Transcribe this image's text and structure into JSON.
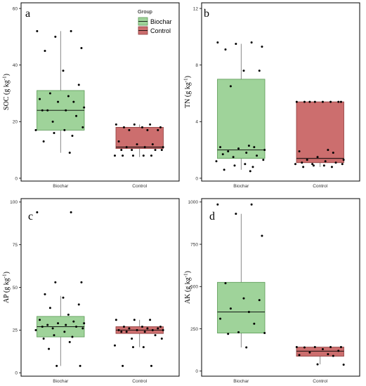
{
  "legend": {
    "title": "Group",
    "items": [
      {
        "label": "Biochar",
        "fill": "#9fd39a",
        "stroke": "#5a9a55"
      },
      {
        "label": "Control",
        "fill": "#cc6e6e",
        "stroke": "#8e3e3e"
      }
    ]
  },
  "chart_data": [
    {
      "type": "box",
      "panel": "a",
      "ylabel_main": "SOC",
      "ylabel_unit_base": "(g kg",
      "ylabel_unit_sup": "-1",
      "ylabel_unit_close": ")",
      "ylim": [
        -1,
        62
      ],
      "yticks": [
        0,
        20,
        40,
        60
      ],
      "categories": [
        "Biochar",
        "Control"
      ],
      "boxes": [
        {
          "q1": 17,
          "median": 24,
          "q3": 31,
          "whisker_low": 9,
          "whisker_high": 52
        },
        {
          "q1": 10.5,
          "median": 11,
          "q3": 18,
          "whisker_low": 7.5,
          "whisker_high": 19
        }
      ],
      "points": [
        [
          52,
          52,
          50,
          46,
          45,
          38,
          33,
          30,
          29,
          28,
          27,
          27,
          25,
          24,
          24,
          24,
          22,
          20,
          18,
          17,
          17,
          16,
          15,
          13,
          9
        ],
        [
          19,
          19,
          19,
          18,
          18,
          18,
          17,
          17,
          17,
          13,
          12,
          12,
          11,
          11,
          11,
          10,
          10,
          10,
          10,
          8,
          8,
          8,
          8,
          8
        ]
      ]
    },
    {
      "type": "box",
      "panel": "b",
      "ylabel_main": "TN",
      "ylabel_unit_base": "(g kg",
      "ylabel_unit_sup": "-1",
      "ylabel_unit_close": ")",
      "ylim": [
        -0.2,
        12.4
      ],
      "yticks": [
        0,
        4,
        8,
        12
      ],
      "categories": [
        "Biochar",
        "Control"
      ],
      "boxes": [
        {
          "q1": 1.4,
          "median": 2.0,
          "q3": 7.0,
          "whisker_low": 0.6,
          "whisker_high": 9.5
        },
        {
          "q1": 1.1,
          "median": 1.4,
          "q3": 5.4,
          "whisker_low": 0.8,
          "whisker_high": 5.4
        }
      ],
      "points": [
        [
          9.6,
          9.6,
          9.5,
          9.3,
          9.1,
          7.6,
          7.6,
          6.5,
          2.3,
          2.2,
          2.2,
          2.1,
          2.0,
          1.9,
          1.8,
          1.7,
          1.6,
          1.5,
          1.3,
          1.2,
          1.0,
          0.9,
          0.8,
          0.6,
          0.5
        ],
        [
          5.4,
          5.4,
          5.4,
          5.4,
          5.4,
          5.4,
          5.4,
          5.4,
          2.0,
          1.9,
          1.8,
          1.5,
          1.3,
          1.3,
          1.2,
          1.1,
          1.1,
          1.0,
          1.0,
          1.0,
          0.9,
          0.9,
          0.8,
          0.8
        ]
      ]
    },
    {
      "type": "box",
      "panel": "c",
      "ylabel_main": "AP",
      "ylabel_unit_base": "(g kg",
      "ylabel_unit_sup": "-1",
      "ylabel_unit_close": ")",
      "ylim": [
        -2,
        102
      ],
      "yticks": [
        0,
        25,
        50,
        75,
        100
      ],
      "categories": [
        "Biochar",
        "Control"
      ],
      "boxes": [
        {
          "q1": 21,
          "median": 27,
          "q3": 33,
          "whisker_low": 4,
          "whisker_high": 45
        },
        {
          "q1": 23,
          "median": 25,
          "q3": 27,
          "whisker_low": 15,
          "whisker_high": 31
        }
      ],
      "points": [
        [
          94,
          94,
          53,
          53,
          46,
          44,
          40,
          38,
          34,
          31,
          30,
          29,
          29,
          28,
          28,
          27,
          27,
          26,
          26,
          25,
          24,
          22,
          21,
          20,
          18,
          14,
          4,
          4
        ],
        [
          31,
          31,
          31,
          27,
          27,
          27,
          26,
          26,
          26,
          25,
          25,
          25,
          25,
          24,
          24,
          24,
          22,
          20,
          20,
          16,
          15,
          15,
          4,
          4
        ]
      ]
    },
    {
      "type": "box",
      "panel": "d",
      "ylabel_main": "AK",
      "ylabel_unit_base": "(g kg",
      "ylabel_unit_sup": "-1",
      "ylabel_unit_close": ")",
      "ylim": [
        -30,
        1020
      ],
      "yticks": [
        0,
        250,
        500,
        750,
        1000
      ],
      "categories": [
        "Biochar",
        "Control"
      ],
      "boxes": [
        {
          "q1": 225,
          "median": 350,
          "q3": 525,
          "whisker_low": 140,
          "whisker_high": 930
        },
        {
          "q1": 88,
          "median": 118,
          "q3": 142,
          "whisker_low": 40,
          "whisker_high": 142
        }
      ],
      "points": [
        [
          985,
          985,
          930,
          800,
          520,
          430,
          420,
          370,
          350,
          310,
          280,
          230,
          225,
          220,
          140
        ],
        [
          142,
          142,
          142,
          142,
          140,
          130,
          120,
          110,
          100,
          95,
          90,
          40,
          38
        ]
      ]
    }
  ]
}
